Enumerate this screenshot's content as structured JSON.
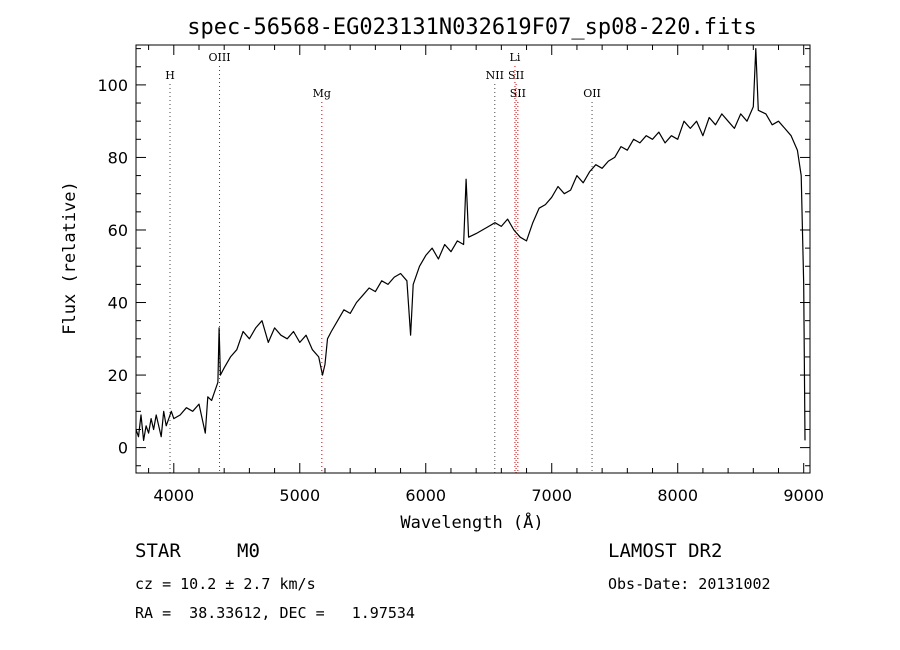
{
  "chart_data": {
    "type": "line",
    "title": "spec-56568-EG023131N032619F07_sp08-220.fits",
    "xlabel": "Wavelength (Å)",
    "ylabel": "Flux (relative)",
    "xlim": [
      3700,
      9050
    ],
    "ylim": [
      -7,
      111
    ],
    "x_ticks": [
      4000,
      5000,
      6000,
      7000,
      8000,
      9000
    ],
    "y_ticks": [
      0,
      20,
      40,
      60,
      80,
      100
    ],
    "grid": false,
    "series": [
      {
        "points": [
          [
            3700,
            5
          ],
          [
            3720,
            3
          ],
          [
            3740,
            9
          ],
          [
            3760,
            2
          ],
          [
            3780,
            6
          ],
          [
            3800,
            4
          ],
          [
            3820,
            8
          ],
          [
            3840,
            5
          ],
          [
            3860,
            9
          ],
          [
            3880,
            6
          ],
          [
            3900,
            3
          ],
          [
            3920,
            10
          ],
          [
            3940,
            6
          ],
          [
            3960,
            8
          ],
          [
            3980,
            10
          ],
          [
            4000,
            8
          ],
          [
            4050,
            9
          ],
          [
            4100,
            11
          ],
          [
            4150,
            10
          ],
          [
            4200,
            12
          ],
          [
            4250,
            4
          ],
          [
            4270,
            14
          ],
          [
            4300,
            13
          ],
          [
            4320,
            15
          ],
          [
            4350,
            18
          ],
          [
            4360,
            33
          ],
          [
            4370,
            20
          ],
          [
            4400,
            22
          ],
          [
            4450,
            25
          ],
          [
            4500,
            27
          ],
          [
            4550,
            32
          ],
          [
            4600,
            30
          ],
          [
            4650,
            33
          ],
          [
            4700,
            35
          ],
          [
            4750,
            29
          ],
          [
            4800,
            33
          ],
          [
            4850,
            31
          ],
          [
            4900,
            30
          ],
          [
            4950,
            32
          ],
          [
            5000,
            29
          ],
          [
            5050,
            31
          ],
          [
            5100,
            27
          ],
          [
            5150,
            25
          ],
          [
            5180,
            20
          ],
          [
            5200,
            23
          ],
          [
            5220,
            30
          ],
          [
            5250,
            32
          ],
          [
            5300,
            35
          ],
          [
            5350,
            38
          ],
          [
            5400,
            37
          ],
          [
            5450,
            40
          ],
          [
            5500,
            42
          ],
          [
            5550,
            44
          ],
          [
            5600,
            43
          ],
          [
            5650,
            46
          ],
          [
            5700,
            45
          ],
          [
            5750,
            47
          ],
          [
            5800,
            48
          ],
          [
            5850,
            46
          ],
          [
            5880,
            31
          ],
          [
            5900,
            45
          ],
          [
            5950,
            50
          ],
          [
            6000,
            53
          ],
          [
            6050,
            55
          ],
          [
            6100,
            52
          ],
          [
            6150,
            56
          ],
          [
            6200,
            54
          ],
          [
            6250,
            57
          ],
          [
            6300,
            56
          ],
          [
            6320,
            74
          ],
          [
            6340,
            58
          ],
          [
            6400,
            59
          ],
          [
            6450,
            60
          ],
          [
            6500,
            61
          ],
          [
            6550,
            62
          ],
          [
            6600,
            61
          ],
          [
            6650,
            63
          ],
          [
            6700,
            60
          ],
          [
            6750,
            58
          ],
          [
            6800,
            57
          ],
          [
            6850,
            62
          ],
          [
            6900,
            66
          ],
          [
            6950,
            67
          ],
          [
            7000,
            69
          ],
          [
            7050,
            72
          ],
          [
            7100,
            70
          ],
          [
            7150,
            71
          ],
          [
            7200,
            75
          ],
          [
            7250,
            73
          ],
          [
            7300,
            76
          ],
          [
            7350,
            78
          ],
          [
            7400,
            77
          ],
          [
            7450,
            79
          ],
          [
            7500,
            80
          ],
          [
            7550,
            83
          ],
          [
            7600,
            82
          ],
          [
            7650,
            85
          ],
          [
            7700,
            84
          ],
          [
            7750,
            86
          ],
          [
            7800,
            85
          ],
          [
            7850,
            87
          ],
          [
            7900,
            84
          ],
          [
            7950,
            86
          ],
          [
            8000,
            85
          ],
          [
            8050,
            90
          ],
          [
            8100,
            88
          ],
          [
            8150,
            90
          ],
          [
            8200,
            86
          ],
          [
            8250,
            91
          ],
          [
            8300,
            89
          ],
          [
            8350,
            92
          ],
          [
            8400,
            90
          ],
          [
            8450,
            88
          ],
          [
            8500,
            92
          ],
          [
            8550,
            90
          ],
          [
            8600,
            94
          ],
          [
            8620,
            110
          ],
          [
            8640,
            93
          ],
          [
            8700,
            92
          ],
          [
            8750,
            89
          ],
          [
            8800,
            90
          ],
          [
            8850,
            88
          ],
          [
            8900,
            86
          ],
          [
            8950,
            82
          ],
          [
            8980,
            75
          ],
          [
            9000,
            45
          ],
          [
            9010,
            2
          ]
        ]
      }
    ],
    "lines": [
      {
        "label": "H",
        "wavelength": 3970,
        "label_row": 1,
        "color": "#444444"
      },
      {
        "label": "OIII",
        "wavelength": 4363,
        "label_row": 0,
        "color": "#444444"
      },
      {
        "label": "Mg",
        "wavelength": 5175,
        "label_row": 2,
        "color": "#cc0000"
      },
      {
        "label": "NII",
        "wavelength": 6548,
        "label_row": 1,
        "color": "#444444"
      },
      {
        "label": "Li",
        "wavelength": 6708,
        "label_row": 0,
        "color": "#cc0000"
      },
      {
        "label": "SII",
        "wavelength": 6717,
        "label_row": 1,
        "color": "#cc0000"
      },
      {
        "label": "SII",
        "wavelength": 6731,
        "label_row": 2,
        "color": "#cc0000"
      },
      {
        "label": "OII",
        "wavelength": 7320,
        "label_row": 2,
        "color": "#444444"
      }
    ]
  },
  "info": {
    "class": "STAR",
    "subclass": "M0",
    "survey": "LAMOST DR2",
    "cz": "cz = 10.2 ± 2.7 km/s",
    "obs_date": "Obs-Date: 20131002",
    "coords": "RA =  38.33612, DEC =   1.97534"
  }
}
